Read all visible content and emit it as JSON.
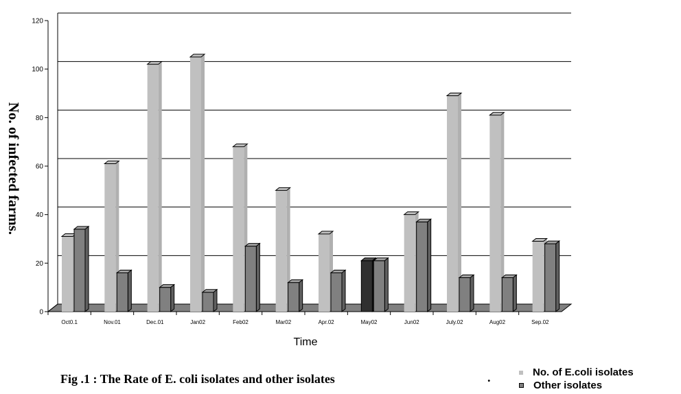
{
  "chart_data": {
    "type": "bar",
    "title": "",
    "xlabel": "Time",
    "ylabel": "No. of infected farms.",
    "ylim": [
      0,
      120
    ],
    "yticks": [
      0,
      20,
      40,
      60,
      80,
      100,
      120
    ],
    "grid": true,
    "legend_position": "bottom-right",
    "categories": [
      "Oct0.1",
      "Nov.01",
      "Dec.01",
      "Jan02",
      "Feb02",
      "Mar02",
      "Apr.02",
      "May02",
      "Jun02",
      "July.02",
      "Aug02",
      "Sep.02"
    ],
    "series": [
      {
        "name": "No. of E.coli isolates",
        "color": "#c0c0c0",
        "values": [
          31,
          61,
          102,
          105,
          68,
          50,
          32,
          21,
          40,
          89,
          81,
          29
        ]
      },
      {
        "name": "Other isolates",
        "color": "#808080",
        "values": [
          34,
          16,
          10,
          8,
          27,
          12,
          16,
          21,
          37,
          14,
          14,
          28
        ]
      }
    ]
  },
  "caption": "Fig .1 : The Rate of E. coli isolates and other isolates",
  "caption_dot": "."
}
